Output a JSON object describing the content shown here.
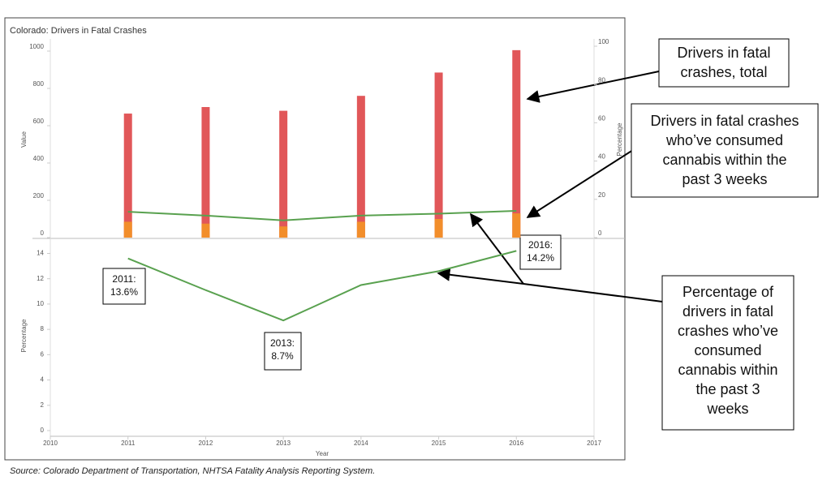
{
  "chart_data": [
    {
      "type": "bar",
      "title": "Colorado: Drivers in Fatal Crashes",
      "y_label": "Value",
      "y2_label": "Percentage",
      "x": [
        2011,
        2012,
        2013,
        2014,
        2015,
        2016
      ],
      "series": [
        {
          "color": "#e15759",
          "values": [
            665,
            700,
            680,
            760,
            885,
            1005
          ]
        },
        {
          "color": "#f28e2b",
          "values": [
            85,
            75,
            60,
            85,
            100,
            130
          ]
        },
        {
          "type": "line",
          "axis": "y2",
          "color": "#59a14f",
          "values": [
            13.5,
            11.5,
            9,
            11.5,
            12.5,
            14
          ]
        }
      ],
      "xlim": [
        2010,
        2017
      ],
      "ylim": [
        0,
        1000
      ],
      "yticks": [
        0,
        200,
        400,
        600,
        800,
        1000
      ],
      "y2lim": [
        0,
        100
      ],
      "y2ticks": [
        0,
        20,
        40,
        60,
        80,
        100
      ]
    },
    {
      "type": "line",
      "x_label": "Year",
      "y_label": "Percentage",
      "x": [
        2011,
        2012,
        2013,
        2014,
        2015,
        2016
      ],
      "series": [
        {
          "color": "#59a14f",
          "values": [
            13.6,
            11.1,
            8.7,
            11.5,
            12.6,
            14.2
          ]
        }
      ],
      "xlim": [
        2010,
        2017
      ],
      "xticks": [
        2010,
        2011,
        2012,
        2013,
        2014,
        2015,
        2016,
        2017
      ],
      "ylim": [
        0,
        14.8
      ],
      "yticks": [
        0,
        2,
        4,
        6,
        8,
        10,
        12,
        14
      ],
      "annotations": [
        [
          "2011:",
          "13.6%"
        ],
        [
          "2013:",
          "8.7%"
        ],
        [
          "2016:",
          "14.2%"
        ]
      ]
    }
  ],
  "callouts": [
    [
      "Drivers in fatal",
      "crashes, total"
    ],
    [
      "Drivers in fatal crashes",
      "who’ve consumed",
      "cannabis within the",
      "past 3 weeks"
    ],
    [
      "Percentage of",
      "drivers in fatal",
      "crashes who’ve",
      "consumed",
      "cannabis within",
      "the past 3",
      "weeks"
    ]
  ],
  "source": "Source: Colorado Department of Transportation, NHTSA Fatality Analysis Reporting System."
}
